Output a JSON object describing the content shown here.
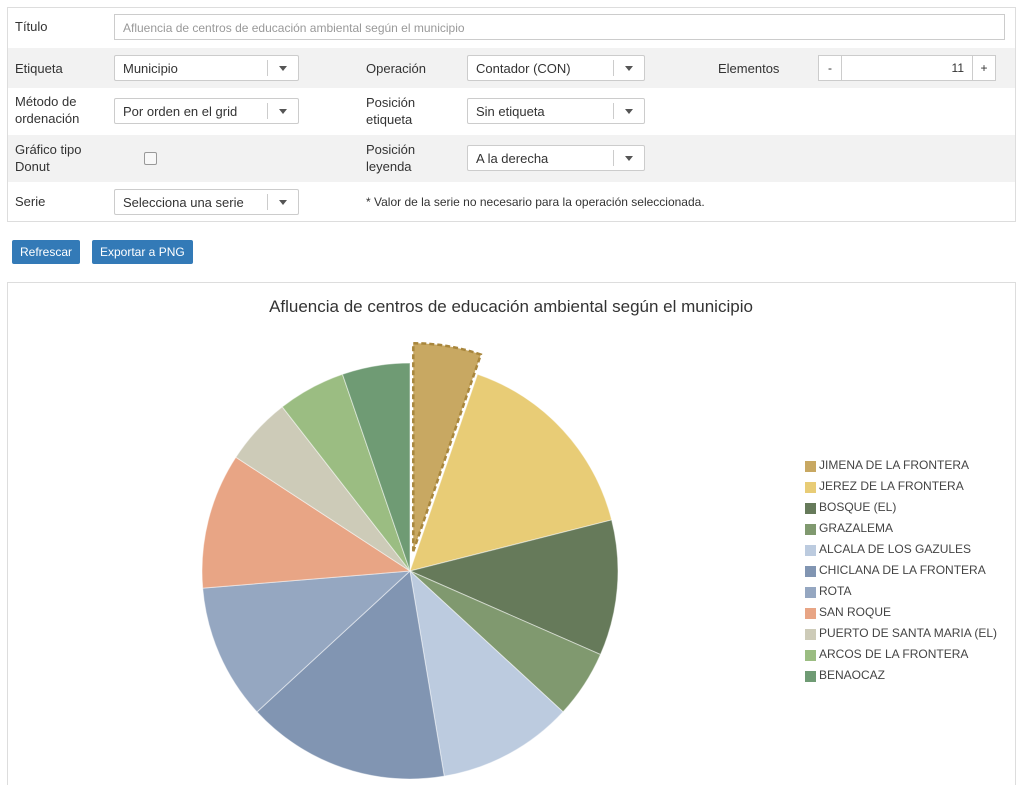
{
  "form": {
    "titulo_label": "Título",
    "titulo_value": "Afluencia de centros de educación ambiental según el municipio",
    "etiqueta_label": "Etiqueta",
    "etiqueta_value": "Municipio",
    "operacion_label": "Operación",
    "operacion_value": "Contador (CON)",
    "elementos_label": "Elementos",
    "elementos_value": "11",
    "minus": "-",
    "plus": "+",
    "metodo_label_1": "Método de",
    "metodo_label_2": "ordenación",
    "metodo_value": "Por orden en el grid",
    "posicion_etiqueta_label_1": "Posición",
    "posicion_etiqueta_label_2": "etiqueta",
    "posicion_etiqueta_value": "Sin etiqueta",
    "donut_label_1": "Gráfico tipo",
    "donut_label_2": "Donut",
    "donut_checked": false,
    "posicion_leyenda_label_1": "Posición",
    "posicion_leyenda_label_2": "leyenda",
    "posicion_leyenda_value": "A la derecha",
    "serie_label": "Serie",
    "serie_placeholder": "Selecciona una serie",
    "serie_note": "* Valor de la serie no necesario para la operación seleccionada."
  },
  "buttons": {
    "refresh": "Refrescar",
    "export": "Exportar a PNG"
  },
  "colors": {
    "primary_button": "#337ab7"
  },
  "chart_data": {
    "type": "pie",
    "title": "Afluencia de centros de educación ambiental según el municipio",
    "legend_position": "right",
    "highlighted": "JIMENA DE LA FRONTERA",
    "categories": [
      "JIMENA DE LA FRONTERA",
      "JEREZ DE LA FRONTERA",
      "BOSQUE (EL)",
      "GRAZALEMA",
      "ALCALA DE LOS GAZULES",
      "CHICLANA DE LA FRONTERA",
      "ROTA",
      "SAN ROQUE",
      "PUERTO DE SANTA MARIA (EL)",
      "ARCOS DE LA FRONTERA",
      "BENAOCAZ"
    ],
    "values": [
      1,
      3,
      2,
      1,
      2,
      3,
      2,
      2,
      1,
      1,
      1
    ],
    "colors": [
      "#c8a862",
      "#e8cc76",
      "#667a5a",
      "#80996f",
      "#bccbdf",
      "#8195b2",
      "#95a7c1",
      "#e8a585",
      "#cdcbb8",
      "#9bbd82",
      "#6f9b74"
    ]
  }
}
